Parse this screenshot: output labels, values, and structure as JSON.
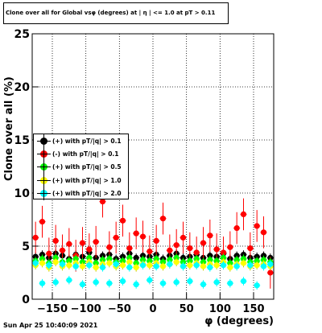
{
  "title": "Clone  over all for Global vsφ (degrees) at | η | <= 1.0 at pT > 0.11",
  "ylabel": "Clone  over all (%)",
  "xlabel": "φ (degrees)",
  "timestamp": "Sun Apr 25 10:40:09 2021",
  "chart_data": {
    "type": "scatter",
    "title": "Clone  over all for Global vsφ (degrees) at | η | <= 1.0 at pT > 0.11",
    "xlabel": "φ (degrees)",
    "ylabel": "Clone  over all (%)",
    "xlim": [
      -180,
      180
    ],
    "ylim": [
      0,
      25
    ],
    "x_ticks": [
      -150,
      -100,
      -50,
      0,
      50,
      100,
      150
    ],
    "y_ticks": [
      0,
      5,
      10,
      15,
      20,
      25
    ],
    "grid": true,
    "legend_position": "left-middle",
    "series": [
      {
        "name": "(+) with pT/|q| > 0.1",
        "color": "#000000",
        "x": [
          -175,
          -165,
          -155,
          -145,
          -135,
          -125,
          -115,
          -105,
          -95,
          -85,
          -75,
          -65,
          -55,
          -45,
          -35,
          -25,
          -15,
          -5,
          5,
          15,
          25,
          35,
          45,
          55,
          65,
          75,
          85,
          95,
          105,
          115,
          125,
          135,
          145,
          155,
          165,
          175
        ],
        "y": [
          4.0,
          4.2,
          3.9,
          4.3,
          4.1,
          3.8,
          4.2,
          4.0,
          4.4,
          3.9,
          4.1,
          4.2,
          3.8,
          4.0,
          4.3,
          3.9,
          4.1,
          4.0,
          4.2,
          3.8,
          4.1,
          4.3,
          3.9,
          4.0,
          4.2,
          3.9,
          4.1,
          4.0,
          4.3,
          3.8,
          4.1,
          4.2,
          3.9,
          4.0,
          4.1,
          3.9
        ]
      },
      {
        "name": "(-) with pT/|q| > 0.1",
        "color": "#ff0000",
        "x": [
          -175,
          -165,
          -155,
          -145,
          -135,
          -125,
          -115,
          -105,
          -95,
          -85,
          -75,
          -65,
          -55,
          -45,
          -35,
          -25,
          -15,
          -5,
          5,
          15,
          25,
          35,
          45,
          55,
          65,
          75,
          85,
          95,
          105,
          115,
          125,
          135,
          145,
          155,
          165,
          175
        ],
        "y": [
          5.8,
          7.3,
          4.3,
          5.5,
          4.6,
          5.2,
          4.1,
          5.3,
          4.7,
          5.4,
          9.2,
          4.9,
          5.8,
          7.4,
          4.8,
          6.2,
          5.9,
          4.5,
          5.5,
          7.6,
          4.6,
          5.1,
          5.8,
          4.8,
          4.4,
          5.3,
          6.0,
          4.7,
          4.4,
          4.9,
          6.7,
          8.0,
          4.8,
          6.9,
          6.3,
          2.5
        ]
      },
      {
        "name": "(+) with pT/|q| > 0.5",
        "color": "#00ff00",
        "x": [
          -175,
          -165,
          -155,
          -145,
          -135,
          -125,
          -115,
          -105,
          -95,
          -85,
          -75,
          -65,
          -55,
          -45,
          -35,
          -25,
          -15,
          -5,
          5,
          15,
          25,
          35,
          45,
          55,
          65,
          75,
          85,
          95,
          105,
          115,
          125,
          135,
          145,
          155,
          165,
          175
        ],
        "y": [
          3.6,
          3.8,
          3.4,
          3.9,
          3.5,
          3.6,
          3.8,
          3.5,
          3.9,
          3.4,
          3.7,
          3.8,
          3.5,
          3.6,
          3.9,
          3.4,
          3.7,
          3.6,
          3.8,
          3.5,
          3.7,
          3.9,
          3.5,
          3.6,
          3.8,
          3.5,
          3.7,
          3.6,
          3.9,
          3.4,
          3.7,
          3.8,
          3.5,
          3.6,
          3.7,
          3.5
        ]
      },
      {
        "name": "(+) with pT/|q| > 1.0",
        "color": "#ffff00",
        "x": [
          -175,
          -165,
          -155,
          -145,
          -135,
          -125,
          -115,
          -105,
          -95,
          -85,
          -75,
          -65,
          -55,
          -45,
          -35,
          -25,
          -15,
          -5,
          5,
          15,
          25,
          35,
          45,
          55,
          65,
          75,
          85,
          95,
          105,
          115,
          125,
          135,
          145,
          155,
          165,
          175
        ],
        "y": [
          3.2,
          3.4,
          3.0,
          3.5,
          3.1,
          3.2,
          3.4,
          3.1,
          3.5,
          3.0,
          3.3,
          3.4,
          3.1,
          3.2,
          3.5,
          3.0,
          3.3,
          3.2,
          3.4,
          3.1,
          3.3,
          3.5,
          3.1,
          3.2,
          3.4,
          3.1,
          3.3,
          3.2,
          3.5,
          3.0,
          3.3,
          3.4,
          3.1,
          3.2,
          3.3,
          3.1
        ]
      },
      {
        "name": "(+) with pT/|q| > 2.0",
        "color": "#00ffff",
        "x": [
          -175,
          -165,
          -155,
          -145,
          -135,
          -125,
          -115,
          -105,
          -95,
          -85,
          -75,
          -65,
          -55,
          -45,
          -35,
          -25,
          -15,
          -5,
          5,
          15,
          25,
          35,
          45,
          55,
          65,
          75,
          85,
          95,
          105,
          115,
          125,
          135,
          145,
          155,
          165,
          175
        ],
        "y": [
          3.4,
          1.5,
          3.2,
          1.6,
          3.3,
          1.8,
          3.1,
          1.4,
          3.2,
          1.6,
          3.0,
          1.5,
          3.3,
          1.7,
          3.0,
          1.4,
          3.2,
          1.8,
          3.1,
          1.5,
          3.3,
          1.6,
          3.1,
          1.7,
          3.2,
          1.4,
          3.0,
          1.6,
          3.2,
          1.5,
          3.1,
          1.7,
          3.2,
          1.3,
          3.1,
          3.3
        ]
      }
    ]
  }
}
